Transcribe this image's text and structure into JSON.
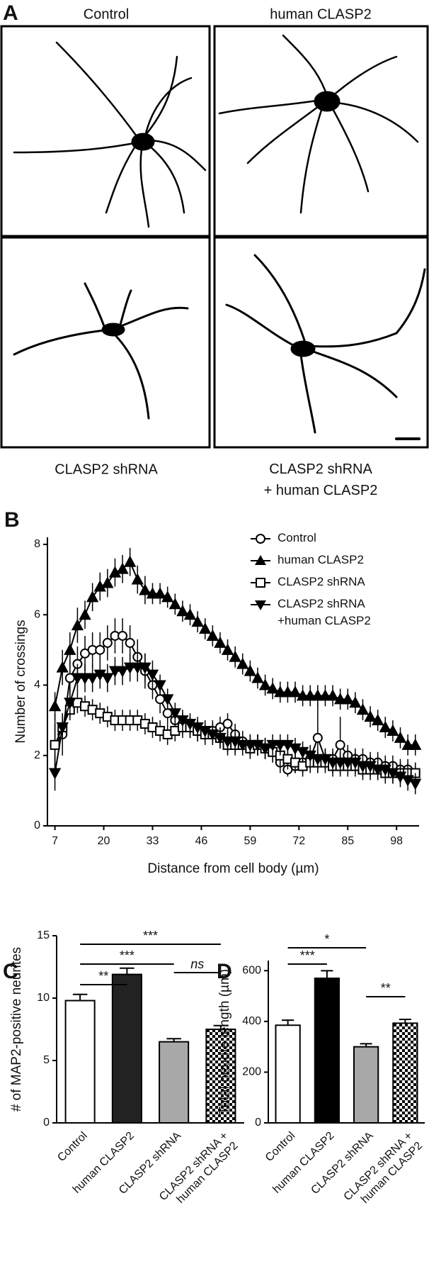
{
  "panel_a": {
    "label": "A",
    "captions": [
      "Control",
      "human CLASP2",
      "CLASP2 shRNA",
      [
        "CLASP2 shRNA",
        "+ human CLASP2"
      ]
    ]
  },
  "chart_data": [
    {
      "type": "line",
      "panel": "B",
      "ylabel": "Number of crossings",
      "xlabel": "Distance from cell body (µm)",
      "x": [
        7,
        9,
        11,
        13,
        15,
        17,
        19,
        21,
        23,
        25,
        27,
        29,
        31,
        33,
        35,
        37,
        39,
        41,
        43,
        45,
        47,
        49,
        51,
        53,
        55,
        57,
        59,
        61,
        63,
        65,
        67,
        69,
        71,
        73,
        75,
        77,
        79,
        81,
        83,
        85,
        87,
        89,
        91,
        93,
        95,
        97,
        99,
        101,
        103
      ],
      "xlim": [
        5,
        104
      ],
      "xticks": [
        7,
        20,
        33,
        46,
        59,
        72,
        85,
        98
      ],
      "ylim": [
        0,
        8.2
      ],
      "yticks": [
        0,
        2,
        4,
        6,
        8
      ],
      "legend": "upper right",
      "series": [
        {
          "name": [
            "Control"
          ],
          "color": "#000000",
          "marker": "circle-open",
          "values": [
            2.3,
            2.6,
            4.2,
            4.6,
            4.9,
            5.0,
            5.0,
            5.2,
            5.4,
            5.4,
            5.2,
            4.8,
            4.4,
            4.0,
            3.6,
            3.2,
            3.0,
            2.9,
            2.8,
            2.7,
            2.7,
            2.7,
            2.8,
            2.9,
            2.6,
            2.4,
            2.3,
            2.3,
            2.2,
            2.1,
            1.8,
            1.6,
            1.7,
            1.8,
            1.9,
            2.5,
            1.9,
            1.9,
            2.3,
            2.0,
            1.9,
            1.9,
            1.8,
            1.8,
            1.7,
            1.7,
            1.6,
            1.6,
            1.5
          ],
          "errors": [
            0.9,
            0.6,
            0.5,
            0.5,
            0.5,
            0.5,
            0.5,
            0.5,
            0.5,
            0.5,
            0.5,
            0.5,
            0.5,
            0.4,
            0.4,
            0.3,
            0.3,
            0.3,
            0.3,
            0.3,
            0.3,
            0.3,
            0.3,
            0.3,
            0.3,
            0.3,
            0.3,
            0.3,
            0.3,
            0.3,
            0.3,
            0.2,
            0.2,
            0.3,
            0.3,
            1.0,
            0.3,
            0.3,
            0.8,
            0.3,
            0.3,
            0.3,
            0.3,
            0.3,
            0.3,
            0.3,
            0.3,
            0.3,
            0.3
          ]
        },
        {
          "name": [
            "human CLASP2"
          ],
          "color": "#000000",
          "marker": "triangle-up",
          "values": [
            3.4,
            4.5,
            5.0,
            5.7,
            6.0,
            6.5,
            6.8,
            6.9,
            7.2,
            7.3,
            7.5,
            7.0,
            6.7,
            6.6,
            6.6,
            6.5,
            6.3,
            6.1,
            6.0,
            5.8,
            5.6,
            5.4,
            5.2,
            5.0,
            4.8,
            4.6,
            4.4,
            4.2,
            4.0,
            3.9,
            3.8,
            3.8,
            3.8,
            3.7,
            3.7,
            3.7,
            3.7,
            3.7,
            3.6,
            3.6,
            3.5,
            3.3,
            3.1,
            3.0,
            2.8,
            2.7,
            2.5,
            2.3,
            2.3
          ],
          "errors": [
            0.4,
            0.5,
            0.5,
            0.5,
            0.4,
            0.4,
            0.4,
            0.4,
            0.4,
            0.4,
            0.4,
            0.4,
            0.4,
            0.3,
            0.3,
            0.3,
            0.3,
            0.3,
            0.3,
            0.3,
            0.3,
            0.3,
            0.3,
            0.3,
            0.3,
            0.3,
            0.3,
            0.3,
            0.3,
            0.3,
            0.3,
            0.3,
            0.3,
            0.3,
            0.3,
            0.3,
            0.3,
            0.3,
            0.3,
            0.3,
            0.3,
            0.3,
            0.3,
            0.3,
            0.3,
            0.3,
            0.3,
            0.3,
            0.3
          ]
        },
        {
          "name": [
            "CLASP2 shRNA"
          ],
          "color": "#000000",
          "marker": "square-open",
          "values": [
            2.3,
            2.8,
            3.3,
            3.5,
            3.4,
            3.3,
            3.2,
            3.1,
            3.0,
            3.0,
            3.0,
            3.0,
            2.9,
            2.8,
            2.7,
            2.6,
            2.7,
            2.8,
            2.8,
            2.7,
            2.6,
            2.6,
            2.5,
            2.3,
            2.3,
            2.3,
            2.2,
            2.3,
            2.2,
            2.1,
            2.0,
            1.9,
            1.8,
            1.7,
            1.8,
            1.8,
            1.8,
            1.7,
            1.7,
            1.7,
            1.7,
            1.6,
            1.6,
            1.6,
            1.5,
            1.5,
            1.5,
            1.5,
            1.5
          ],
          "errors": [
            0.6,
            0.3,
            0.3,
            0.3,
            0.3,
            0.3,
            0.3,
            0.3,
            0.3,
            0.3,
            0.3,
            0.3,
            0.3,
            0.3,
            0.3,
            0.3,
            0.3,
            0.3,
            0.3,
            0.3,
            0.3,
            0.3,
            0.3,
            0.3,
            0.3,
            0.3,
            0.3,
            0.3,
            0.3,
            0.3,
            0.3,
            0.3,
            0.3,
            0.3,
            0.3,
            0.3,
            0.3,
            0.3,
            0.3,
            0.3,
            0.3,
            0.3,
            0.3,
            0.3,
            0.3,
            0.3,
            0.3,
            0.3,
            0.3
          ]
        },
        {
          "name": [
            "CLASP2 shRNA",
            "+human CLASP2"
          ],
          "color": "#000000",
          "marker": "triangle-down",
          "values": [
            1.5,
            2.8,
            3.5,
            4.2,
            4.2,
            4.2,
            4.3,
            4.2,
            4.4,
            4.4,
            4.5,
            4.5,
            4.5,
            4.3,
            4.0,
            3.6,
            3.2,
            3.0,
            2.9,
            2.8,
            2.7,
            2.6,
            2.5,
            2.4,
            2.4,
            2.3,
            2.3,
            2.3,
            2.2,
            2.3,
            2.3,
            2.3,
            2.2,
            2.1,
            2.0,
            1.9,
            1.9,
            1.8,
            1.8,
            1.8,
            1.8,
            1.7,
            1.7,
            1.6,
            1.6,
            1.5,
            1.4,
            1.3,
            1.2
          ],
          "errors": [
            0.5,
            0.4,
            0.4,
            0.4,
            0.4,
            0.4,
            0.4,
            0.4,
            0.4,
            0.4,
            0.4,
            0.4,
            0.4,
            0.4,
            0.3,
            0.3,
            0.3,
            0.3,
            0.3,
            0.3,
            0.3,
            0.3,
            0.3,
            0.3,
            0.3,
            0.3,
            0.3,
            0.3,
            0.3,
            0.3,
            0.3,
            0.3,
            0.3,
            0.3,
            0.3,
            0.3,
            0.3,
            0.3,
            0.3,
            0.3,
            0.3,
            0.3,
            0.3,
            0.3,
            0.3,
            0.3,
            0.3,
            0.3,
            0.3
          ]
        }
      ]
    },
    {
      "type": "bar",
      "panel": "C",
      "ylabel": "# of MAP2-positive neurites",
      "categories": [
        [
          "Control"
        ],
        [
          "human CLASP2"
        ],
        [
          "CLASP2 shRNA"
        ],
        [
          "CLASP2 shRNA +",
          "human CLASP2"
        ]
      ],
      "values": [
        9.8,
        11.9,
        6.5,
        7.5
      ],
      "errors": [
        0.5,
        0.5,
        0.25,
        0.3
      ],
      "fills": [
        "#ffffff",
        "#222222",
        "#a8a8a8",
        "checkerboard"
      ],
      "ylim": [
        0,
        15
      ],
      "yticks": [
        0,
        5,
        10,
        15
      ],
      "annotations": [
        {
          "from": 0,
          "to": 1,
          "label": "**"
        },
        {
          "from": 0,
          "to": 2,
          "label": "***"
        },
        {
          "from": 0,
          "to": 3,
          "label": "***"
        },
        {
          "from": 2,
          "to": 3,
          "label": "ns",
          "italic": true
        }
      ]
    },
    {
      "type": "bar",
      "panel": "D",
      "ylabel": "Total neurite length (µm)",
      "categories": [
        [
          "Control"
        ],
        [
          "human CLASP2"
        ],
        [
          "CLASP2 shRNA"
        ],
        [
          "CLASP2 shRNA +",
          "human CLASP2"
        ]
      ],
      "values": [
        385,
        570,
        300,
        393
      ],
      "errors": [
        20,
        30,
        12,
        15
      ],
      "fills": [
        "#ffffff",
        "#000000",
        "#a8a8a8",
        "checkerboard"
      ],
      "ylim": [
        0,
        640
      ],
      "yticks": [
        0,
        200,
        400,
        600
      ],
      "annotations": [
        {
          "from": 0,
          "to": 2,
          "label": "*"
        },
        {
          "from": 0,
          "to": 1,
          "label": "***"
        },
        {
          "from": 2,
          "to": 3,
          "label": "**"
        }
      ]
    }
  ]
}
